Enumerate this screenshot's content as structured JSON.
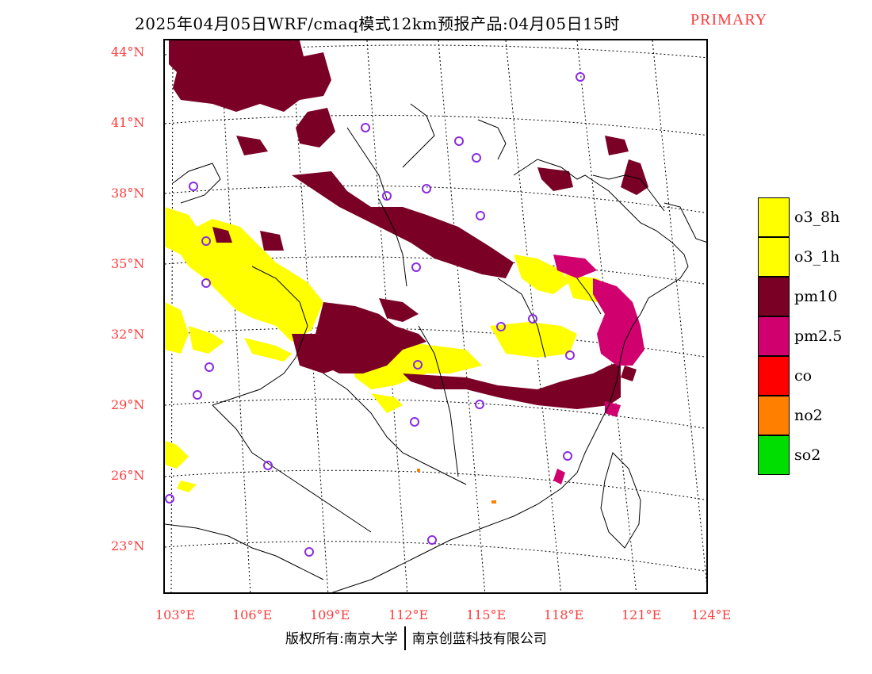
{
  "title": {
    "main": "2025年04月05日WRF/cmaq模式12km预报产品:04月05日15时",
    "tag": "PRIMARY"
  },
  "axes": {
    "lat_labels": [
      "44°N",
      "41°N",
      "38°N",
      "35°N",
      "32°N",
      "29°N",
      "26°N",
      "23°N"
    ],
    "lon_labels": [
      "103°E",
      "106°E",
      "109°E",
      "112°E",
      "115°E",
      "118°E",
      "121°E",
      "124°E"
    ]
  },
  "legend": [
    {
      "label": "o3_8h",
      "color": "#ffff00"
    },
    {
      "label": "o3_1h",
      "color": "#ffff00"
    },
    {
      "label": "pm10",
      "color": "#7a0026"
    },
    {
      "label": "pm2.5",
      "color": "#d0006f"
    },
    {
      "label": "co",
      "color": "#ff0000"
    },
    {
      "label": "no2",
      "color": "#ff7f00"
    },
    {
      "label": "so2",
      "color": "#00dd00"
    }
  ],
  "copyright": {
    "left": "版权所有:南京大学",
    "right": "南京创蓝科技有限公司"
  },
  "colors": {
    "label_red": "#ff3b3b",
    "station": "#8a2be2",
    "o3": "#ffff00",
    "pm10": "#7a0026",
    "pm25": "#d0006f",
    "no2": "#ff7f00"
  }
}
